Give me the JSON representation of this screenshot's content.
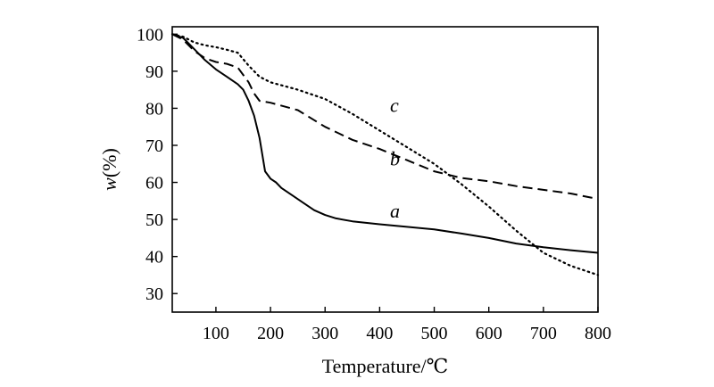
{
  "chart_data": {
    "type": "line",
    "title": "",
    "xlabel": "Temperature/℃",
    "ylabel_var": "w",
    "ylabel_unit": "(%)",
    "xlim": [
      20,
      800
    ],
    "ylim": [
      25,
      102
    ],
    "xticks": [
      100,
      200,
      300,
      400,
      500,
      600,
      700,
      800
    ],
    "yticks": [
      30,
      40,
      50,
      60,
      70,
      80,
      90,
      100
    ],
    "grid": false,
    "legend": "none",
    "series": [
      {
        "name": "a",
        "style": "solid",
        "label_at": [
          370,
          52
        ],
        "x": [
          20,
          40,
          60,
          80,
          100,
          120,
          140,
          150,
          160,
          170,
          180,
          190,
          200,
          210,
          220,
          240,
          260,
          280,
          300,
          320,
          350,
          400,
          450,
          500,
          550,
          600,
          650,
          700,
          750,
          800
        ],
        "y": [
          100,
          99,
          96,
          93,
          90.5,
          88.5,
          86.5,
          85,
          82,
          78,
          72,
          63,
          61,
          60,
          58.5,
          56.5,
          54.5,
          52.5,
          51.2,
          50.3,
          49.5,
          48.7,
          48,
          47.3,
          46.2,
          45,
          43.5,
          42.5,
          41.7,
          41
        ]
      },
      {
        "name": "b",
        "style": "dashed",
        "label_at": [
          370,
          66
        ],
        "x": [
          20,
          40,
          60,
          80,
          100,
          120,
          140,
          150,
          160,
          170,
          180,
          200,
          250,
          300,
          350,
          400,
          450,
          500,
          550,
          600,
          650,
          700,
          750,
          800
        ],
        "y": [
          100,
          98.5,
          95.5,
          93.5,
          92.5,
          92,
          91,
          89,
          87,
          84,
          82,
          81.5,
          79.5,
          75,
          71.5,
          69,
          66,
          63,
          61.2,
          60.3,
          59,
          58,
          57,
          55.5
        ]
      },
      {
        "name": "c",
        "style": "dotted",
        "label_at": [
          370,
          80.5
        ],
        "x": [
          20,
          40,
          60,
          80,
          100,
          120,
          140,
          160,
          180,
          200,
          250,
          300,
          350,
          400,
          450,
          500,
          550,
          600,
          650,
          700,
          750,
          800
        ],
        "y": [
          100,
          99.3,
          97.8,
          97,
          96.5,
          95.8,
          95,
          91.5,
          88.5,
          87,
          85,
          82.5,
          78.5,
          74,
          69.5,
          65,
          59.5,
          53.5,
          47,
          41,
          37.5,
          35
        ]
      }
    ]
  }
}
